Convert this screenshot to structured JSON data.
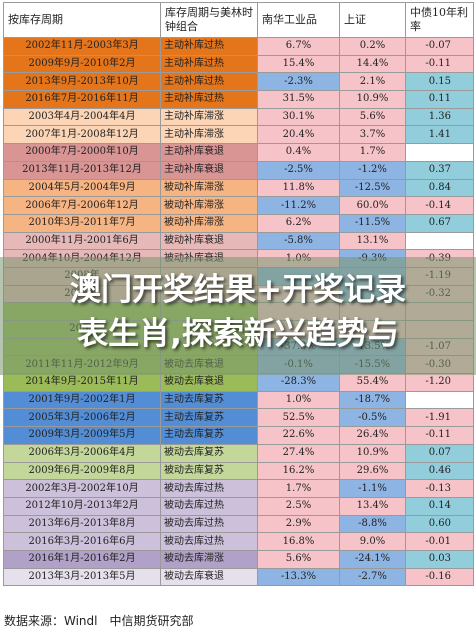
{
  "headers": [
    "按库存周期",
    "库存周期与美林时钟组合",
    "南华工业品",
    "上证",
    "中债10年利率"
  ],
  "rows": [
    {
      "period": "2002年11月-2003年3月",
      "cycle": "主动补库过热",
      "nh": "6.7%",
      "sz": "0.2%",
      "rate": "-0.07",
      "pc": "#e5751a",
      "cc": "#e5751a",
      "nc": "#f6c3c9",
      "sc": "#f6c3c9",
      "rc": "#f6c3c9"
    },
    {
      "period": "2009年9月-2010年2月",
      "cycle": "主动补库过热",
      "nh": "15.4%",
      "sz": "14.4%",
      "rate": "-0.11",
      "pc": "#e5751a",
      "cc": "#e5751a",
      "nc": "#f6c3c9",
      "sc": "#f6c3c9",
      "rc": "#f6c3c9"
    },
    {
      "period": "2013年9月-2013年10月",
      "cycle": "主动补库过热",
      "nh": "-2.3%",
      "sz": "2.1%",
      "rate": "0.15",
      "pc": "#e5751a",
      "cc": "#e5751a",
      "nc": "#8eb4e3",
      "sc": "#f6c3c9",
      "rc": "#92cddc"
    },
    {
      "period": "2016年7月-2016年11月",
      "cycle": "主动补库过热",
      "nh": "31.5%",
      "sz": "10.9%",
      "rate": "0.11",
      "pc": "#e5751a",
      "cc": "#e5751a",
      "nc": "#f6c3c9",
      "sc": "#f6c3c9",
      "rc": "#92cddc"
    },
    {
      "period": "2003年4月-2004年4月",
      "cycle": "主动补库滞涨",
      "nh": "30.1%",
      "sz": "5.6%",
      "rate": "1.36",
      "pc": "#fbd5b5",
      "cc": "#fbd5b5",
      "nc": "#f6c3c9",
      "sc": "#f6c3c9",
      "rc": "#92cddc"
    },
    {
      "period": "2007年1月-2008年12月",
      "cycle": "主动补库滞涨",
      "nh": "20.4%",
      "sz": "3.7%",
      "rate": "1.41",
      "pc": "#fbd5b5",
      "cc": "#fbd5b5",
      "nc": "#f6c3c9",
      "sc": "#f6c3c9",
      "rc": "#92cddc"
    },
    {
      "period": "2000年7月-2000年10月",
      "cycle": "主动补库衰退",
      "nh": "0.4%",
      "sz": "1.7%",
      "rate": "",
      "pc": "#d99594",
      "cc": "#d99594",
      "nc": "#f6c3c9",
      "sc": "#f6c3c9",
      "rc": "#ffffff"
    },
    {
      "period": "2013年11月-2013年12月",
      "cycle": "主动补库衰退",
      "nh": "-2.5%",
      "sz": "-1.2%",
      "rate": "0.37",
      "pc": "#d99594",
      "cc": "#d99594",
      "nc": "#8eb4e3",
      "sc": "#8eb4e3",
      "rc": "#92cddc"
    },
    {
      "period": "2004年5月-2004年9月",
      "cycle": "被动补库滞涨",
      "nh": "11.8%",
      "sz": "-12.5%",
      "rate": "0.84",
      "pc": "#f7b483",
      "cc": "#f7b483",
      "nc": "#f6c3c9",
      "sc": "#8eb4e3",
      "rc": "#92cddc"
    },
    {
      "period": "2006年7月-2006年12月",
      "cycle": "被动补库滞涨",
      "nh": "-11.2%",
      "sz": "60.0%",
      "rate": "-0.14",
      "pc": "#f7b483",
      "cc": "#f7b483",
      "nc": "#8eb4e3",
      "sc": "#f6c3c9",
      "rc": "#f6c3c9"
    },
    {
      "period": "2010年3月-2011年7月",
      "cycle": "被动补库滞涨",
      "nh": "6.2%",
      "sz": "-11.5%",
      "rate": "0.67",
      "pc": "#f7b483",
      "cc": "#f7b483",
      "nc": "#f6c3c9",
      "sc": "#8eb4e3",
      "rc": "#92cddc"
    },
    {
      "period": "2000年11月-2001年6月",
      "cycle": "被动补库衰退",
      "nh": "-5.8%",
      "sz": "13.1%",
      "rate": "",
      "pc": "#e6b8b7",
      "cc": "#e6b8b7",
      "nc": "#8eb4e3",
      "sc": "#f6c3c9",
      "rc": "#ffffff"
    },
    {
      "period": "2004年10月-2004年12月",
      "cycle": "被动补库衰退",
      "nh": "1.0%",
      "sz": "-9.3%",
      "rate": "-0.39",
      "pc": "#e6b8b7",
      "cc": "#e6b8b7",
      "nc": "#f6c3c9",
      "sc": "#8eb4e3",
      "rc": "#f6c3c9"
    },
    {
      "period": "2008年",
      "cycle": "",
      "nh": "",
      "sz": "",
      "rate": "-1.19",
      "pc": "#e6b8b7",
      "cc": "#e6b8b7",
      "nc": "#8eb4e3",
      "sc": "#8eb4e3",
      "rc": "#f6c3c9"
    },
    {
      "period": "2012年",
      "cycle": "",
      "nh": "",
      "sz": "",
      "rate": "-0.32",
      "pc": "#e6b8b7",
      "cc": "#e6b8b7",
      "nc": "#f6c3c9",
      "sc": "#8eb4e3",
      "rc": "#f6c3c9"
    },
    {
      "period": "",
      "cycle": "",
      "nh": "",
      "sz": "",
      "rate": "",
      "pc": "#9bbb59",
      "cc": "#9bbb59",
      "nc": "#f6c3c9",
      "sc": "#f6c3c9",
      "rc": "#f6c3c9"
    },
    {
      "period": "2005",
      "cycle": "",
      "nh": "",
      "sz": "",
      "rate": "",
      "pc": "#9bbb59",
      "cc": "#9bbb59",
      "nc": "#f6c3c9",
      "sc": "#f6c3c9",
      "rc": "#f6c3c9"
    },
    {
      "period": "",
      "cycle": "",
      "nh": "-37.3%",
      "sz": "-13.5%",
      "rate": "-1.07",
      "pc": "#9bbb59",
      "cc": "#9bbb59",
      "nc": "#8eb4e3",
      "sc": "#8eb4e3",
      "rc": "#f6c3c9"
    },
    {
      "period": "2011年11月-2012年9月",
      "cycle": "被动去库衰退",
      "nh": "-0.1%",
      "sz": "-15.5%",
      "rate": "-0.30",
      "pc": "#9bbb59",
      "cc": "#9bbb59",
      "nc": "#8eb4e3",
      "sc": "#8eb4e3",
      "rc": "#f6c3c9"
    },
    {
      "period": "2014年9月-2015年11月",
      "cycle": "被动去库衰退",
      "nh": "-28.3%",
      "sz": "55.4%",
      "rate": "-1.20",
      "pc": "#9bbb59",
      "cc": "#9bbb59",
      "nc": "#8eb4e3",
      "sc": "#f6c3c9",
      "rc": "#f6c3c9"
    },
    {
      "period": "2001年9月-2002年1月",
      "cycle": "主动去库复苏",
      "nh": "1.0%",
      "sz": "-18.7%",
      "rate": "",
      "pc": "#538dd5",
      "cc": "#538dd5",
      "nc": "#f6c3c9",
      "sc": "#8eb4e3",
      "rc": "#ffffff"
    },
    {
      "period": "2005年3月-2006年2月",
      "cycle": "主动去库复苏",
      "nh": "52.5%",
      "sz": "-0.5%",
      "rate": "-1.91",
      "pc": "#538dd5",
      "cc": "#538dd5",
      "nc": "#f6c3c9",
      "sc": "#8eb4e3",
      "rc": "#f6c3c9"
    },
    {
      "period": "2009年3月-2009年5月",
      "cycle": "主动去库复苏",
      "nh": "22.6%",
      "sz": "26.4%",
      "rate": "-0.11",
      "pc": "#538dd5",
      "cc": "#538dd5",
      "nc": "#f6c3c9",
      "sc": "#f6c3c9",
      "rc": "#f6c3c9"
    },
    {
      "period": "2006年3月-2006年4月",
      "cycle": "被动去库复苏",
      "nh": "27.4%",
      "sz": "10.9%",
      "rate": "0.07",
      "pc": "#c4d79b",
      "cc": "#c4d79b",
      "nc": "#f6c3c9",
      "sc": "#f6c3c9",
      "rc": "#92cddc"
    },
    {
      "period": "2009年6月-2009年8月",
      "cycle": "被动去库复苏",
      "nh": "16.2%",
      "sz": "29.6%",
      "rate": "0.46",
      "pc": "#c4d79b",
      "cc": "#c4d79b",
      "nc": "#f6c3c9",
      "sc": "#f6c3c9",
      "rc": "#92cddc"
    },
    {
      "period": "2002年3月-2002年10月",
      "cycle": "被动去库过热",
      "nh": "1.7%",
      "sz": "-1.1%",
      "rate": "-0.13",
      "pc": "#ccc0da",
      "cc": "#ccc0da",
      "nc": "#f6c3c9",
      "sc": "#8eb4e3",
      "rc": "#f6c3c9"
    },
    {
      "period": "2012年10月-2013年2月",
      "cycle": "被动去库过热",
      "nh": "2.5%",
      "sz": "13.4%",
      "rate": "0.14",
      "pc": "#ccc0da",
      "cc": "#ccc0da",
      "nc": "#f6c3c9",
      "sc": "#f6c3c9",
      "rc": "#92cddc"
    },
    {
      "period": "2013年6月-2013年8月",
      "cycle": "被动去库过热",
      "nh": "2.9%",
      "sz": "-8.8%",
      "rate": "0.60",
      "pc": "#ccc0da",
      "cc": "#ccc0da",
      "nc": "#f6c3c9",
      "sc": "#8eb4e3",
      "rc": "#92cddc"
    },
    {
      "period": "2016年3月-2016年6月",
      "cycle": "被动去库过热",
      "nh": "16.8%",
      "sz": "9.0%",
      "rate": "-0.01",
      "pc": "#ccc0da",
      "cc": "#ccc0da",
      "nc": "#f6c3c9",
      "sc": "#f6c3c9",
      "rc": "#f6c3c9"
    },
    {
      "period": "2016年1月-2016年2月",
      "cycle": "被动去库滞涨",
      "nh": "5.6%",
      "sz": "-24.1%",
      "rate": "0.03",
      "pc": "#b1a0c7",
      "cc": "#b1a0c7",
      "nc": "#f6c3c9",
      "sc": "#8eb4e3",
      "rc": "#92cddc"
    },
    {
      "period": "2013年3月-2013年5月",
      "cycle": "被动去库衰退",
      "nh": "-13.3%",
      "sz": "-2.7%",
      "rate": "-0.16",
      "pc": "#e6e0ec",
      "cc": "#e6e0ec",
      "nc": "#8eb4e3",
      "sc": "#8eb4e3",
      "rc": "#f6c3c9"
    }
  ],
  "overlay": {
    "line1": "澳门开奖结果+开奖记录",
    "line2": "表生肖,探索新兴趋势与"
  },
  "source": "数据来源：Windl　中信期货研究部"
}
